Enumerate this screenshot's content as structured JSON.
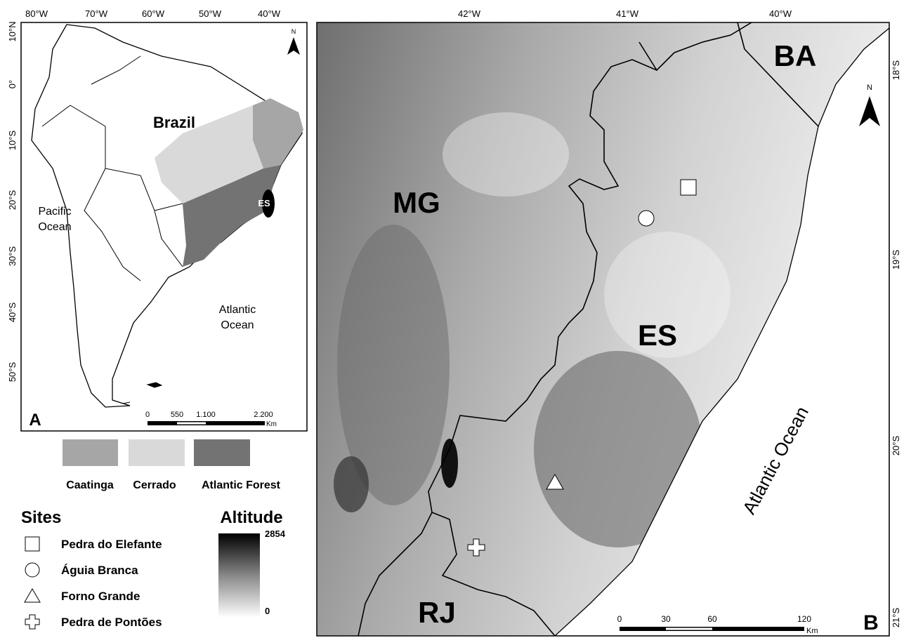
{
  "panel_a": {
    "label": "A",
    "lon_labels": [
      "80°W",
      "70°W",
      "60°W",
      "50°W",
      "40°W"
    ],
    "lat_labels": [
      "10°N",
      "0°",
      "10°S",
      "20°S",
      "30°S",
      "40°S",
      "50°S"
    ],
    "country": "Brazil",
    "pacific": [
      "Pacific",
      "Ocean"
    ],
    "atlantic": [
      "Atlantic",
      "Ocean"
    ],
    "state": "ES",
    "north": "N",
    "scale": {
      "ticks": [
        "0",
        "550",
        "1.100",
        "2.200"
      ],
      "unit": "Km"
    }
  },
  "biomes": [
    "Caatinga",
    "Cerrado",
    "Atlantic Forest"
  ],
  "sites": {
    "title": "Sites",
    "items": [
      "Pedra do Elefante",
      "Águia Branca",
      "Forno Grande",
      "Pedra de Pontões"
    ]
  },
  "altitude": {
    "title": "Altitude",
    "max": "2854",
    "min": "0"
  },
  "panel_b": {
    "label": "B",
    "lon_labels": [
      "42°W",
      "41°W",
      "40°W"
    ],
    "lat_labels": [
      "18°S",
      "19°S",
      "20°S",
      "21°S"
    ],
    "states": [
      "MG",
      "ES",
      "BA",
      "RJ"
    ],
    "ocean": "Atlantic Ocean",
    "north": "N",
    "scale": {
      "ticks": [
        "0",
        "30",
        "60",
        "120"
      ],
      "unit": "Km"
    }
  }
}
